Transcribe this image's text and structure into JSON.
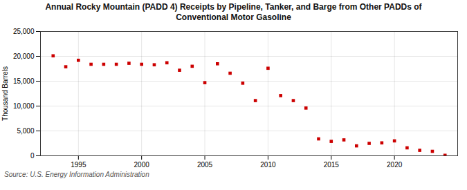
{
  "chart_data": {
    "type": "scatter",
    "title": "Annual Rocky Mountain (PADD 4) Receipts by Pipeline, Tanker, and Barge from Other PADDs of\nConventional Motor Gasoline",
    "ylabel": "Thousand Barrels",
    "source": "Source: U.S. Energy Information Administration",
    "x": [
      1993,
      1994,
      1995,
      1996,
      1997,
      1998,
      1999,
      2000,
      2001,
      2002,
      2003,
      2004,
      2005,
      2006,
      2007,
      2008,
      2009,
      2010,
      2011,
      2012,
      2013,
      2014,
      2015,
      2016,
      2017,
      2018,
      2019,
      2020,
      2021,
      2022,
      2023,
      2024
    ],
    "values": [
      20100,
      17900,
      19200,
      18400,
      18400,
      18400,
      18600,
      18400,
      18300,
      18700,
      17200,
      18000,
      14700,
      18500,
      16600,
      14600,
      11100,
      17600,
      12100,
      11100,
      9600,
      3400,
      2900,
      3200,
      2000,
      2500,
      2600,
      3000,
      1600,
      1100,
      900,
      100
    ],
    "color": "#cc0000",
    "marker": "square",
    "xlim": [
      1992,
      2025
    ],
    "ylim": [
      0,
      25000
    ],
    "xticks": [
      1995,
      2000,
      2005,
      2010,
      2015,
      2020
    ],
    "yticks": [
      0,
      {
        "value": 5000,
        "label": "5,000"
      },
      {
        "value": 10000,
        "label": "10,000"
      },
      {
        "value": 15000,
        "label": "15,000"
      },
      {
        "value": 20000,
        "label": "20,000"
      },
      {
        "value": 25000,
        "label": "25,000"
      }
    ],
    "grid": true
  }
}
